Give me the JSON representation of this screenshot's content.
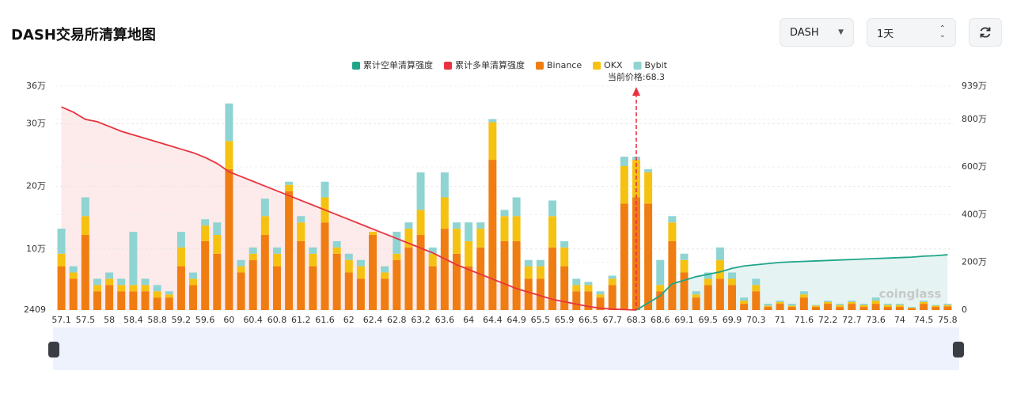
{
  "header": {
    "title": "DASH交易所清算地图",
    "symbol": "DASH",
    "period": "1天"
  },
  "chart_data": {
    "type": "bar",
    "current_price_label": "当前价格:68.3",
    "watermark": "coinglass",
    "categories": [
      "57.1",
      null,
      "57.5",
      null,
      "58",
      null,
      "58.4",
      null,
      "58.8",
      null,
      "59.2",
      null,
      "59.6",
      null,
      "60",
      null,
      "60.4",
      null,
      "60.8",
      null,
      "61.2",
      null,
      "61.6",
      null,
      "62",
      null,
      "62.4",
      null,
      "62.8",
      null,
      "63.2",
      null,
      "63.6",
      null,
      "64",
      null,
      "64.4",
      null,
      "64.9",
      null,
      "65.5",
      null,
      "65.9",
      null,
      "66.5",
      null,
      "67.7",
      null,
      "68.3",
      null,
      "68.6",
      null,
      "69.1",
      null,
      "69.5",
      null,
      "69.9",
      null,
      "70.3",
      null,
      "71",
      null,
      "71.6",
      null,
      "72.2",
      null,
      "72.7",
      null,
      "73.6",
      null,
      "74",
      null,
      "74.5",
      null,
      "75.8"
    ],
    "ylim": [
      2409,
      360000
    ],
    "yticks": [
      2409,
      {
        "value": 100000,
        "label": "10万"
      },
      {
        "value": 200000,
        "label": "20万"
      },
      {
        "value": 300000,
        "label": "30万"
      },
      {
        "value": 360000,
        "label": "36万"
      }
    ],
    "y2lim": [
      0,
      9390000
    ],
    "y2ticks": [
      0,
      {
        "value": 2000000,
        "label": "200万"
      },
      {
        "value": 4000000,
        "label": "400万"
      },
      {
        "value": 6000000,
        "label": "600万"
      },
      {
        "value": 8000000,
        "label": "800万"
      },
      {
        "value": 9390000,
        "label": "939万"
      }
    ],
    "grid": true,
    "series": [
      {
        "name": "累计空单清算强度",
        "type": "line",
        "axis": "y2",
        "color": "#1fa58a",
        "fill": "rgba(38,166,154,0.12)",
        "values": [
          null,
          null,
          null,
          null,
          null,
          null,
          null,
          null,
          null,
          null,
          null,
          null,
          null,
          null,
          null,
          null,
          null,
          null,
          null,
          null,
          null,
          null,
          null,
          null,
          null,
          null,
          null,
          null,
          null,
          null,
          null,
          null,
          null,
          null,
          null,
          null,
          null,
          null,
          null,
          null,
          null,
          null,
          null,
          null,
          null,
          null,
          null,
          null,
          0,
          300000,
          600000,
          1100000,
          1250000,
          1400000,
          1500000,
          1600000,
          1750000,
          1850000,
          1900000,
          1950000,
          2000000,
          2020000,
          2040000,
          2060000,
          2080000,
          2100000,
          2120000,
          2140000,
          2160000,
          2180000,
          2200000,
          2220000,
          2260000,
          2280000,
          2320000
        ]
      },
      {
        "name": "累计多单清算强度",
        "type": "line",
        "axis": "y2",
        "color": "#e8333f",
        "fill": "rgba(232,51,63,0.1)",
        "values": [
          8520000,
          8300000,
          8000000,
          7900000,
          7700000,
          7500000,
          7350000,
          7200000,
          7050000,
          6900000,
          6750000,
          6600000,
          6400000,
          6150000,
          5800000,
          5600000,
          5400000,
          5200000,
          5000000,
          4800000,
          4600000,
          4400000,
          4200000,
          4000000,
          3800000,
          3600000,
          3400000,
          3200000,
          3000000,
          2800000,
          2600000,
          2400000,
          2150000,
          1900000,
          1700000,
          1500000,
          1300000,
          1100000,
          900000,
          750000,
          600000,
          450000,
          350000,
          250000,
          150000,
          80000,
          40000,
          20000,
          0,
          null,
          null,
          null,
          null,
          null,
          null,
          null,
          null,
          null,
          null,
          null,
          null,
          null,
          null,
          null,
          null,
          null,
          null,
          null,
          null,
          null,
          null,
          null,
          null,
          null,
          null
        ]
      },
      {
        "name": "Binance",
        "type": "bar",
        "color": "#f07d12",
        "values": [
          70000,
          50000,
          120000,
          30000,
          40000,
          30000,
          30000,
          30000,
          20000,
          20000,
          70000,
          40000,
          110000,
          90000,
          225000,
          60000,
          80000,
          120000,
          70000,
          190000,
          110000,
          70000,
          140000,
          90000,
          60000,
          50000,
          120000,
          50000,
          80000,
          100000,
          120000,
          70000,
          130000,
          90000,
          70000,
          100000,
          240000,
          110000,
          110000,
          50000,
          50000,
          100000,
          70000,
          30000,
          30000,
          20000,
          40000,
          170000,
          180000,
          170000,
          30000,
          110000,
          60000,
          20000,
          40000,
          50000,
          40000,
          10000,
          30000,
          5000,
          10000,
          5000,
          20000,
          5000,
          10000,
          5000,
          10000,
          5000,
          10000,
          5000,
          5000,
          3000,
          10000,
          5000,
          6000
        ]
      },
      {
        "name": "OKX",
        "type": "bar",
        "color": "#f6c211",
        "values": [
          20000,
          10000,
          30000,
          10000,
          10000,
          10000,
          10000,
          10000,
          10000,
          5000,
          30000,
          10000,
          25000,
          30000,
          45000,
          10000,
          10000,
          30000,
          20000,
          10000,
          30000,
          20000,
          40000,
          10000,
          20000,
          20000,
          5000,
          10000,
          10000,
          30000,
          40000,
          20000,
          50000,
          40000,
          40000,
          30000,
          60000,
          40000,
          40000,
          20000,
          20000,
          50000,
          30000,
          10000,
          10000,
          5000,
          10000,
          60000,
          60000,
          50000,
          10000,
          30000,
          20000,
          5000,
          10000,
          30000,
          10000,
          5000,
          10000,
          2000,
          3000,
          2000,
          5000,
          2000,
          3000,
          3000,
          3000,
          3000,
          5000,
          3000,
          3000,
          1000,
          3000,
          2000,
          2000
        ]
      },
      {
        "name": "Bybit",
        "type": "bar",
        "color": "#8ed4d2",
        "values": [
          40000,
          10000,
          30000,
          10000,
          10000,
          10000,
          85000,
          10000,
          10000,
          5000,
          25000,
          10000,
          10000,
          20000,
          60000,
          10000,
          10000,
          28000,
          10000,
          5000,
          10000,
          10000,
          25000,
          10000,
          10000,
          10000,
          0,
          10000,
          35000,
          10000,
          60000,
          10000,
          40000,
          10000,
          30000,
          10000,
          5000,
          10000,
          30000,
          10000,
          10000,
          25000,
          10000,
          10000,
          5000,
          5000,
          5000,
          15000,
          5000,
          5000,
          40000,
          10000,
          10000,
          5000,
          10000,
          20000,
          10000,
          5000,
          10000,
          3000,
          2000,
          3000,
          5000,
          1000,
          2000,
          2000,
          2000,
          2000,
          5000,
          2000,
          2000,
          1000,
          2000,
          1000,
          2000
        ]
      }
    ]
  }
}
